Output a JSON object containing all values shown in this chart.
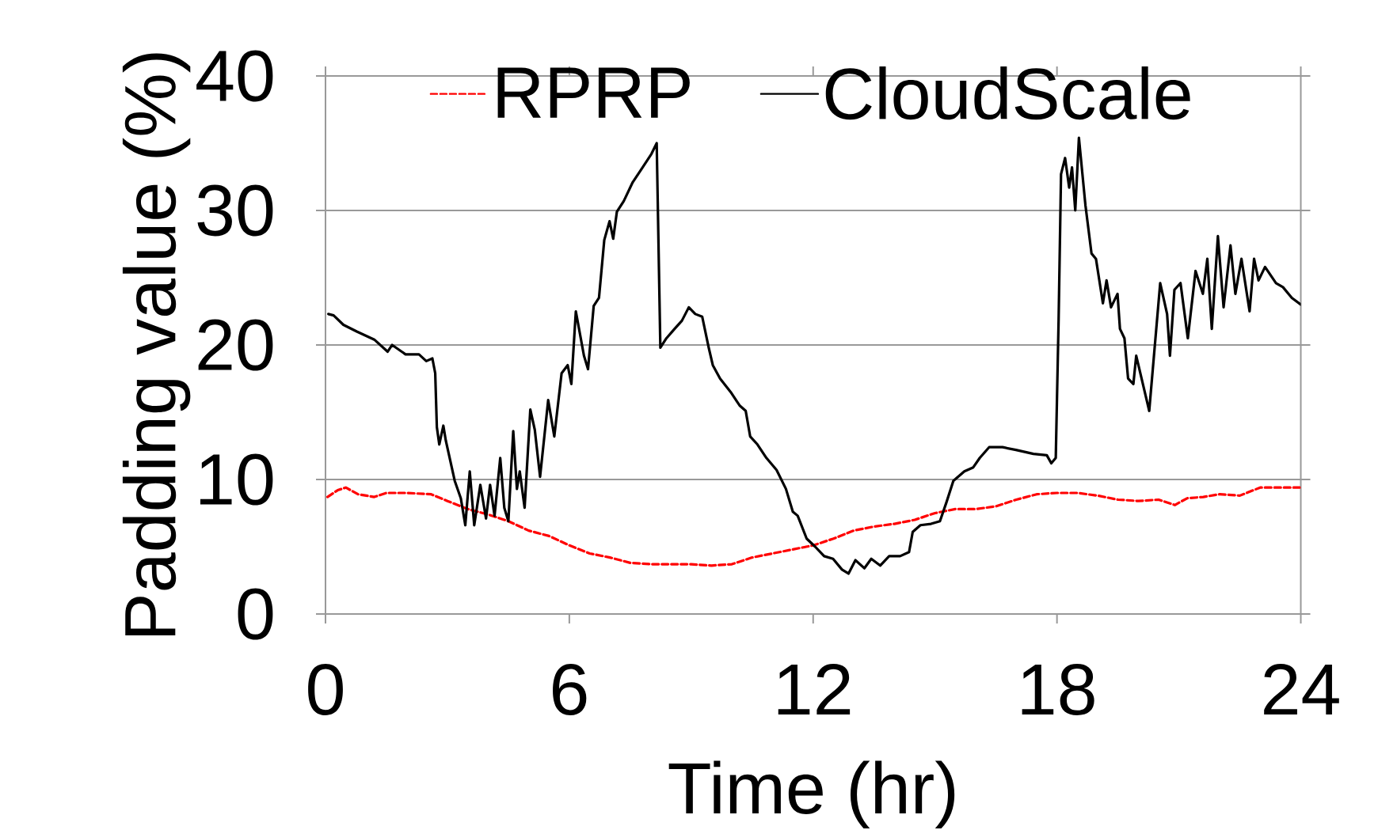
{
  "chart_data": {
    "type": "line",
    "xlabel": "Time (hr)",
    "ylabel": "Padding value (%)",
    "xlim": [
      0,
      24
    ],
    "ylim": [
      0,
      40
    ],
    "xticks": [
      0,
      6,
      12,
      18,
      24
    ],
    "yticks": [
      0,
      10,
      20,
      30,
      40
    ],
    "grid": "y",
    "legend": "top",
    "series": [
      {
        "name": "RPRP",
        "color": "#ff0000",
        "line_style": "dashed",
        "x": [
          0.05,
          0.3,
          0.5,
          0.8,
          1.2,
          1.5,
          2,
          2.6,
          3.0,
          3.5,
          4.0,
          4.5,
          5,
          5.5,
          6,
          6.5,
          7,
          7.5,
          8,
          8.5,
          9,
          9.5,
          10,
          10.5,
          11,
          11.5,
          12,
          12.5,
          13,
          13.5,
          14,
          14.5,
          15,
          15.5,
          16,
          16.5,
          17,
          17.5,
          18,
          18.5,
          19,
          19.5,
          20,
          20.5,
          20.9,
          21.2,
          21.6,
          22,
          22.5,
          23,
          23.5,
          24
        ],
        "values": [
          8.7,
          9.2,
          9.4,
          8.9,
          8.7,
          9.0,
          9.0,
          8.9,
          8.4,
          7.8,
          7.4,
          6.9,
          6.2,
          5.8,
          5.1,
          4.5,
          4.2,
          3.8,
          3.7,
          3.7,
          3.7,
          3.6,
          3.7,
          4.2,
          4.5,
          4.8,
          5.1,
          5.6,
          6.2,
          6.5,
          6.7,
          7.0,
          7.5,
          7.8,
          7.8,
          8.0,
          8.5,
          8.9,
          9.0,
          9.0,
          8.8,
          8.5,
          8.4,
          8.5,
          8.1,
          8.6,
          8.7,
          8.9,
          8.8,
          9.4,
          9.4,
          9.4
        ]
      },
      {
        "name": "CloudScale",
        "color": "#000000",
        "line_style": "solid",
        "x": [
          0.07,
          0.2,
          0.44,
          0.77,
          1.2,
          1.53,
          1.64,
          1.97,
          2.3,
          2.48,
          2.63,
          2.7,
          2.74,
          2.8,
          2.9,
          2.96,
          3.18,
          3.33,
          3.44,
          3.55,
          3.66,
          3.81,
          3.95,
          4.05,
          4.16,
          4.3,
          4.4,
          4.5,
          4.62,
          4.71,
          4.78,
          4.9,
          5.04,
          5.15,
          5.28,
          5.48,
          5.63,
          5.81,
          5.96,
          6.05,
          6.16,
          6.36,
          6.46,
          6.6,
          6.73,
          6.86,
          6.99,
          7.08,
          7.17,
          7.34,
          7.56,
          7.78,
          8.02,
          8.15,
          8.24,
          8.39,
          8.59,
          8.77,
          8.94,
          9.1,
          9.27,
          9.43,
          9.53,
          9.71,
          9.97,
          10.19,
          10.34,
          10.45,
          10.63,
          10.85,
          11.1,
          11.33,
          11.5,
          11.62,
          11.84,
          12.05,
          12.27,
          12.49,
          12.71,
          12.87,
          13.04,
          13.26,
          13.43,
          13.65,
          13.87,
          14.14,
          14.36,
          14.45,
          14.64,
          14.9,
          15.12,
          15.28,
          15.45,
          15.72,
          15.94,
          16.1,
          16.33,
          16.66,
          16.99,
          17.42,
          17.75,
          17.86,
          17.97,
          18.04,
          18.1,
          18.2,
          18.3,
          18.37,
          18.45,
          18.54,
          18.7,
          18.85,
          18.96,
          19.13,
          19.22,
          19.33,
          19.49,
          19.55,
          19.66,
          19.75,
          19.88,
          19.95,
          20.27,
          20.54,
          20.71,
          20.78,
          20.89,
          21.04,
          21.22,
          21.41,
          21.59,
          21.7,
          21.81,
          21.96,
          22.1,
          22.27,
          22.39,
          22.54,
          22.74,
          22.85,
          22.96,
          23.12,
          23.39,
          23.56,
          23.78,
          24
        ],
        "values": [
          22.3,
          22.2,
          21.5,
          21.0,
          20.4,
          19.5,
          20.0,
          19.3,
          19.3,
          18.8,
          19.0,
          17.9,
          13.9,
          12.6,
          14.0,
          12.9,
          9.9,
          8.6,
          6.6,
          10.6,
          6.6,
          9.6,
          7.1,
          9.6,
          7.3,
          11.6,
          7.9,
          6.9,
          13.6,
          9.3,
          10.6,
          7.9,
          15.2,
          13.7,
          10.2,
          15.9,
          13.2,
          17.9,
          18.5,
          17.1,
          22.5,
          19.2,
          18.2,
          22.9,
          23.5,
          27.8,
          29.2,
          27.9,
          29.9,
          30.7,
          32.1,
          33.1,
          34.2,
          35.0,
          19.8,
          20.5,
          21.2,
          21.8,
          22.8,
          22.3,
          22.1,
          19.8,
          18.5,
          17.5,
          16.5,
          15.5,
          15.1,
          13.2,
          12.6,
          11.6,
          10.7,
          9.3,
          7.6,
          7.3,
          5.6,
          5.0,
          4.3,
          4.1,
          3.3,
          3.0,
          4.0,
          3.4,
          4.1,
          3.6,
          4.3,
          4.3,
          4.6,
          6.1,
          6.6,
          6.7,
          6.9,
          8.3,
          9.9,
          10.6,
          10.9,
          11.6,
          12.4,
          12.4,
          12.2,
          11.9,
          11.8,
          11.2,
          11.6,
          21.8,
          32.7,
          33.9,
          31.7,
          33.2,
          30.0,
          35.4,
          30.4,
          26.8,
          26.4,
          23.1,
          24.8,
          22.8,
          23.8,
          21.2,
          20.5,
          17.5,
          17.1,
          19.2,
          15.1,
          24.6,
          22.3,
          19.2,
          24.1,
          24.6,
          20.5,
          25.5,
          23.8,
          26.4,
          21.2,
          28.1,
          22.8,
          27.4,
          23.8,
          26.4,
          22.5,
          26.4,
          24.8,
          25.8,
          24.6,
          24.3,
          23.5,
          23.0
        ]
      }
    ]
  }
}
